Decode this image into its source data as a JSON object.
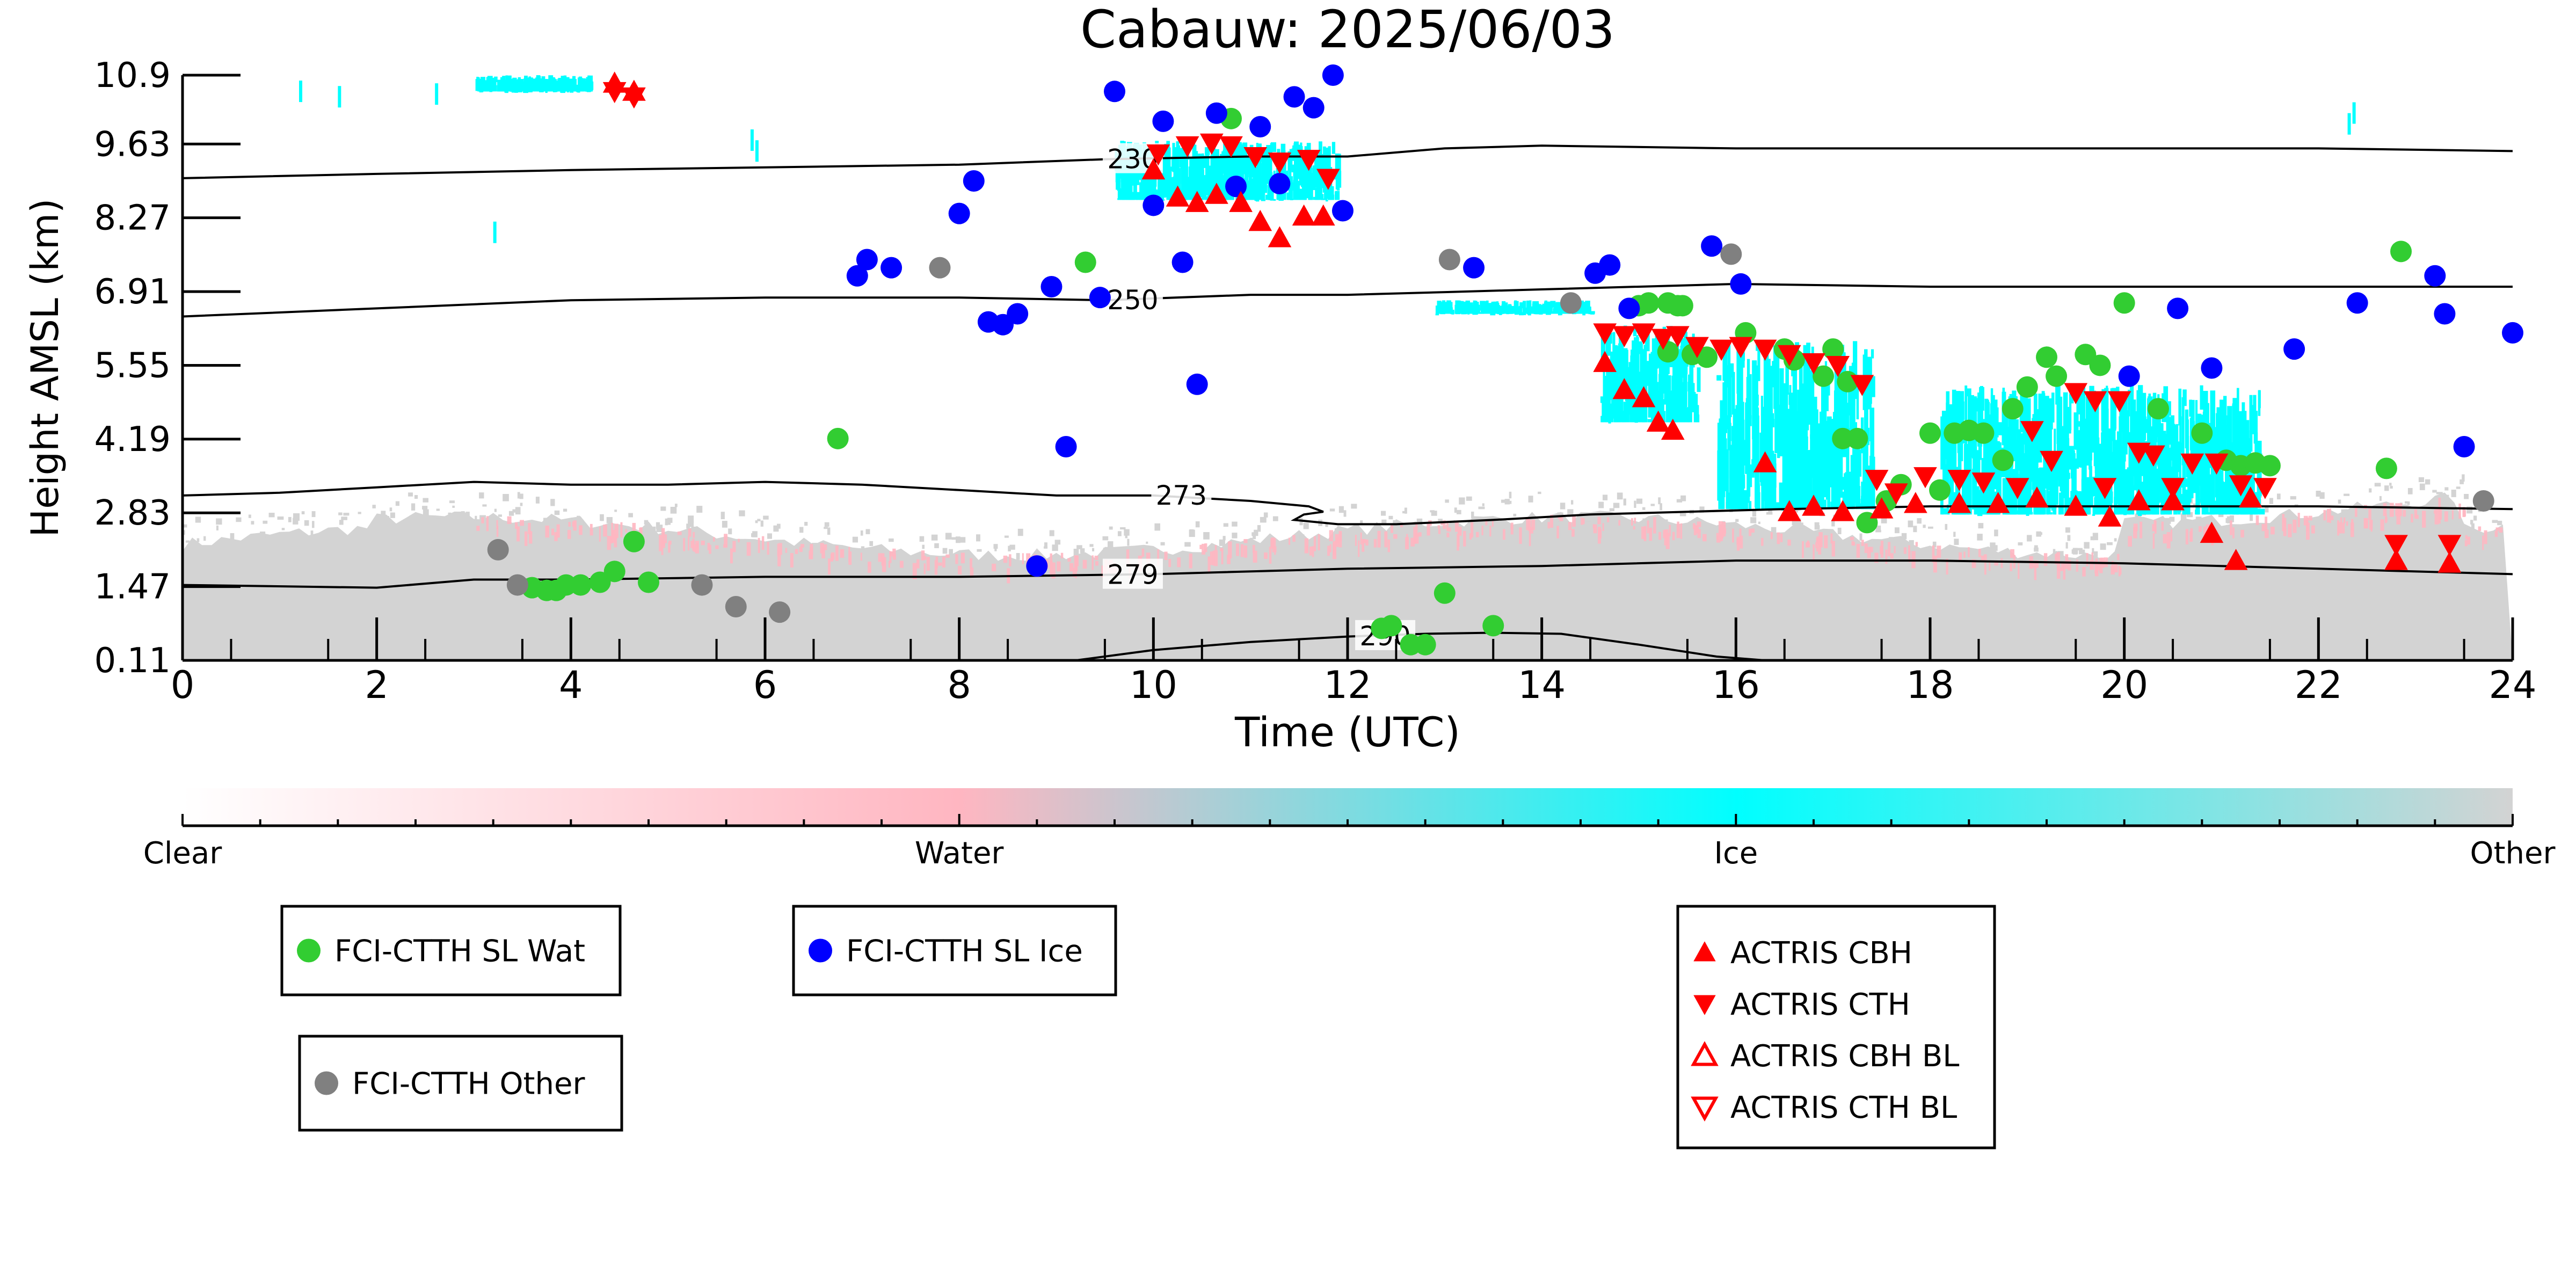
{
  "chart_data": {
    "type": "scatter",
    "title": "Cabauw: 2025/06/03",
    "xlabel": "Time (UTC)",
    "ylabel": "Height AMSL (km)",
    "xlim": [
      0,
      24
    ],
    "ylim": [
      0.11,
      10.9
    ],
    "xticks": [
      0,
      2,
      4,
      6,
      8,
      10,
      12,
      14,
      16,
      18,
      20,
      22,
      24
    ],
    "yticks": [
      "0.11",
      "1.47",
      "2.83",
      "4.19",
      "5.55",
      "6.91",
      "8.27",
      "9.63",
      "10.9"
    ],
    "grid": false,
    "colorbar": {
      "labels": [
        "Clear",
        "Water",
        "Ice",
        "Other"
      ],
      "stops": [
        {
          "pos": 0.0,
          "color": "#ffffff"
        },
        {
          "pos": 0.333,
          "color": "#ffb6c1"
        },
        {
          "pos": 0.667,
          "color": "#00ffff"
        },
        {
          "pos": 1.0,
          "color": "#d3d3d3"
        }
      ]
    },
    "contours": [
      {
        "label": "230",
        "label_x": 9.5,
        "points": [
          [
            0,
            9.0
          ],
          [
            2,
            9.08
          ],
          [
            4,
            9.15
          ],
          [
            6,
            9.2
          ],
          [
            8,
            9.25
          ],
          [
            9.5,
            9.35
          ],
          [
            11,
            9.4
          ],
          [
            12,
            9.4
          ],
          [
            13,
            9.55
          ],
          [
            14,
            9.6
          ],
          [
            16,
            9.55
          ],
          [
            18,
            9.55
          ],
          [
            20,
            9.55
          ],
          [
            22,
            9.55
          ],
          [
            24,
            9.5
          ]
        ]
      },
      {
        "label": "250",
        "label_x": 9.5,
        "points": [
          [
            0,
            6.45
          ],
          [
            2,
            6.6
          ],
          [
            4,
            6.75
          ],
          [
            6,
            6.8
          ],
          [
            8,
            6.8
          ],
          [
            9.5,
            6.75
          ],
          [
            11,
            6.85
          ],
          [
            12,
            6.85
          ],
          [
            13,
            6.9
          ],
          [
            14,
            6.95
          ],
          [
            16,
            7.05
          ],
          [
            18,
            7.0
          ],
          [
            20,
            7.0
          ],
          [
            22,
            7.0
          ],
          [
            24,
            7.0
          ]
        ]
      },
      {
        "label": "273",
        "label_x": 10.0,
        "points": [
          [
            0,
            3.15
          ],
          [
            1,
            3.2
          ],
          [
            2,
            3.3
          ],
          [
            3,
            3.4
          ],
          [
            4,
            3.35
          ],
          [
            5,
            3.35
          ],
          [
            6,
            3.4
          ],
          [
            7,
            3.35
          ],
          [
            8,
            3.25
          ],
          [
            9,
            3.15
          ],
          [
            10,
            3.15
          ],
          [
            11,
            3.05
          ],
          [
            11.6,
            2.95
          ],
          [
            11.75,
            2.85
          ],
          [
            11.55,
            2.8
          ],
          [
            11.45,
            2.7
          ],
          [
            11.9,
            2.62
          ],
          [
            12.5,
            2.62
          ],
          [
            13.5,
            2.7
          ],
          [
            14.5,
            2.8
          ],
          [
            15.5,
            2.85
          ],
          [
            16.5,
            2.9
          ],
          [
            18,
            2.95
          ],
          [
            20,
            2.95
          ],
          [
            22,
            2.95
          ],
          [
            24,
            2.9
          ]
        ]
      },
      {
        "label": "279",
        "label_x": 9.5,
        "points": [
          [
            0,
            1.5
          ],
          [
            2,
            1.45
          ],
          [
            3,
            1.6
          ],
          [
            4,
            1.6
          ],
          [
            6,
            1.65
          ],
          [
            8,
            1.65
          ],
          [
            10,
            1.7
          ],
          [
            12,
            1.8
          ],
          [
            14,
            1.85
          ],
          [
            16,
            1.95
          ],
          [
            18,
            1.95
          ],
          [
            20,
            1.9
          ],
          [
            22,
            1.8
          ],
          [
            24,
            1.7
          ]
        ]
      },
      {
        "label": "290",
        "label_x": 12.1,
        "points": [
          [
            9.2,
            0.11
          ],
          [
            10,
            0.3
          ],
          [
            11,
            0.45
          ],
          [
            12,
            0.55
          ],
          [
            12.8,
            0.6
          ],
          [
            13.5,
            0.62
          ],
          [
            14.2,
            0.6
          ],
          [
            15,
            0.4
          ],
          [
            15.8,
            0.18
          ],
          [
            16.3,
            0.11
          ]
        ]
      }
    ],
    "series": [
      {
        "name": "FCI-CTTH SL Wat",
        "marker": "circle",
        "color": "#32cd32",
        "points": [
          [
            3.6,
            1.45
          ],
          [
            3.75,
            1.4
          ],
          [
            3.85,
            1.4
          ],
          [
            3.95,
            1.5
          ],
          [
            4.1,
            1.5
          ],
          [
            4.3,
            1.55
          ],
          [
            4.45,
            1.75
          ],
          [
            4.65,
            2.3
          ],
          [
            4.8,
            1.55
          ],
          [
            6.75,
            4.2
          ],
          [
            9.3,
            7.45
          ],
          [
            10.8,
            10.1
          ],
          [
            15.0,
            6.65
          ],
          [
            15.1,
            6.7
          ],
          [
            15.3,
            6.7
          ],
          [
            15.4,
            6.65
          ],
          [
            15.45,
            6.65
          ],
          [
            15.3,
            5.8
          ],
          [
            15.55,
            5.75
          ],
          [
            15.7,
            5.7
          ],
          [
            16.1,
            6.15
          ],
          [
            16.5,
            5.85
          ],
          [
            16.6,
            5.65
          ],
          [
            16.9,
            5.35
          ],
          [
            17.0,
            5.85
          ],
          [
            17.15,
            5.25
          ],
          [
            17.1,
            4.2
          ],
          [
            17.25,
            4.2
          ],
          [
            17.35,
            2.65
          ],
          [
            17.55,
            3.05
          ],
          [
            17.7,
            3.35
          ],
          [
            18.0,
            4.3
          ],
          [
            18.1,
            3.25
          ],
          [
            18.25,
            4.3
          ],
          [
            18.4,
            4.35
          ],
          [
            18.55,
            4.3
          ],
          [
            18.75,
            3.8
          ],
          [
            18.85,
            4.75
          ],
          [
            19.0,
            5.15
          ],
          [
            19.2,
            5.7
          ],
          [
            19.3,
            5.35
          ],
          [
            19.6,
            5.75
          ],
          [
            19.75,
            5.55
          ],
          [
            20.0,
            6.7
          ],
          [
            20.35,
            4.75
          ],
          [
            20.8,
            4.3
          ],
          [
            21.05,
            3.8
          ],
          [
            21.2,
            3.7
          ],
          [
            21.35,
            3.75
          ],
          [
            21.5,
            3.7
          ],
          [
            22.7,
            3.65
          ],
          [
            22.85,
            7.65
          ],
          [
            12.35,
            0.7
          ],
          [
            12.45,
            0.75
          ],
          [
            12.65,
            0.4
          ],
          [
            12.8,
            0.4
          ],
          [
            13.0,
            1.35
          ],
          [
            13.5,
            0.75
          ]
        ]
      },
      {
        "name": "FCI-CTTH SL Ice",
        "marker": "circle",
        "color": "#0000ff",
        "points": [
          [
            6.95,
            7.2
          ],
          [
            7.05,
            7.5
          ],
          [
            7.3,
            7.35
          ],
          [
            8.0,
            8.35
          ],
          [
            8.15,
            8.95
          ],
          [
            8.3,
            6.35
          ],
          [
            8.45,
            6.3
          ],
          [
            8.6,
            6.5
          ],
          [
            8.95,
            7.0
          ],
          [
            9.1,
            4.05
          ],
          [
            9.45,
            6.8
          ],
          [
            9.6,
            10.6
          ],
          [
            10.0,
            8.5
          ],
          [
            10.1,
            10.05
          ],
          [
            10.3,
            7.45
          ],
          [
            10.45,
            5.2
          ],
          [
            10.65,
            10.2
          ],
          [
            10.85,
            8.85
          ],
          [
            11.1,
            9.95
          ],
          [
            11.3,
            8.9
          ],
          [
            11.45,
            10.5
          ],
          [
            11.65,
            10.3
          ],
          [
            11.85,
            10.9
          ],
          [
            11.95,
            8.4
          ],
          [
            8.8,
            1.85
          ],
          [
            13.3,
            7.35
          ],
          [
            14.55,
            7.25
          ],
          [
            14.7,
            7.4
          ],
          [
            14.9,
            6.6
          ],
          [
            15.75,
            7.75
          ],
          [
            16.05,
            7.05
          ],
          [
            20.05,
            5.35
          ],
          [
            20.55,
            6.6
          ],
          [
            20.9,
            5.5
          ],
          [
            21.75,
            5.85
          ],
          [
            22.4,
            6.7
          ],
          [
            23.2,
            7.2
          ],
          [
            23.3,
            6.5
          ],
          [
            23.5,
            4.05
          ],
          [
            24.0,
            6.15
          ]
        ]
      },
      {
        "name": "FCI-CTTH Other",
        "marker": "circle",
        "color": "#808080",
        "points": [
          [
            3.25,
            2.15
          ],
          [
            3.45,
            1.5
          ],
          [
            7.8,
            7.35
          ],
          [
            5.35,
            1.5
          ],
          [
            5.7,
            1.1
          ],
          [
            6.15,
            1.0
          ],
          [
            13.05,
            7.5
          ],
          [
            14.3,
            6.7
          ],
          [
            15.95,
            7.6
          ],
          [
            23.7,
            3.05
          ]
        ]
      },
      {
        "name": "ACTRIS CBH",
        "marker": "triangle-up",
        "color": "#ff0000",
        "points": [
          [
            4.45,
            10.75
          ],
          [
            4.65,
            10.6
          ],
          [
            10.0,
            9.15
          ],
          [
            10.25,
            8.65
          ],
          [
            10.45,
            8.55
          ],
          [
            10.65,
            8.7
          ],
          [
            10.9,
            8.55
          ],
          [
            11.1,
            8.2
          ],
          [
            11.3,
            7.9
          ],
          [
            11.55,
            8.3
          ],
          [
            11.75,
            8.3
          ],
          [
            14.65,
            5.6
          ],
          [
            14.85,
            5.1
          ],
          [
            15.05,
            4.95
          ],
          [
            15.2,
            4.5
          ],
          [
            15.35,
            4.35
          ],
          [
            16.3,
            3.75
          ],
          [
            16.55,
            2.85
          ],
          [
            16.8,
            2.95
          ],
          [
            17.1,
            2.85
          ],
          [
            17.5,
            2.9
          ],
          [
            17.85,
            3.0
          ],
          [
            18.3,
            3.0
          ],
          [
            18.7,
            3.0
          ],
          [
            19.1,
            3.1
          ],
          [
            19.5,
            2.95
          ],
          [
            19.85,
            2.75
          ],
          [
            20.15,
            3.05
          ],
          [
            20.5,
            3.05
          ],
          [
            20.9,
            2.45
          ],
          [
            21.3,
            3.1
          ],
          [
            21.15,
            1.95
          ],
          [
            22.8,
            1.95
          ],
          [
            23.35,
            1.9
          ]
        ]
      },
      {
        "name": "ACTRIS CTH",
        "marker": "triangle-down",
        "color": "#ff0000",
        "points": [
          [
            4.45,
            10.6
          ],
          [
            4.65,
            10.5
          ],
          [
            10.05,
            9.45
          ],
          [
            10.35,
            9.6
          ],
          [
            10.6,
            9.65
          ],
          [
            10.8,
            9.6
          ],
          [
            11.05,
            9.4
          ],
          [
            11.3,
            9.3
          ],
          [
            11.6,
            9.35
          ],
          [
            11.8,
            9.0
          ],
          [
            14.65,
            6.15
          ],
          [
            14.85,
            6.1
          ],
          [
            15.05,
            6.15
          ],
          [
            15.25,
            6.05
          ],
          [
            15.4,
            6.1
          ],
          [
            15.6,
            5.9
          ],
          [
            15.85,
            5.85
          ],
          [
            16.05,
            5.9
          ],
          [
            16.3,
            5.85
          ],
          [
            16.55,
            5.75
          ],
          [
            16.8,
            5.6
          ],
          [
            17.05,
            5.55
          ],
          [
            17.3,
            5.2
          ],
          [
            17.45,
            3.45
          ],
          [
            17.65,
            3.2
          ],
          [
            17.95,
            3.5
          ],
          [
            18.3,
            3.45
          ],
          [
            18.55,
            3.4
          ],
          [
            18.9,
            3.3
          ],
          [
            19.05,
            4.35
          ],
          [
            19.25,
            3.8
          ],
          [
            19.5,
            5.05
          ],
          [
            19.7,
            4.9
          ],
          [
            19.95,
            4.9
          ],
          [
            19.8,
            3.3
          ],
          [
            20.15,
            3.95
          ],
          [
            20.3,
            3.9
          ],
          [
            20.5,
            3.3
          ],
          [
            20.7,
            3.75
          ],
          [
            20.95,
            3.75
          ],
          [
            21.2,
            3.35
          ],
          [
            21.45,
            3.3
          ],
          [
            22.8,
            2.25
          ],
          [
            23.35,
            2.25
          ]
        ]
      }
    ],
    "legend": [
      {
        "label": "FCI-CTTH SL Wat",
        "marker": "circle",
        "color": "#32cd32"
      },
      {
        "label": "FCI-CTTH SL Ice",
        "marker": "circle",
        "color": "#0000ff"
      },
      {
        "label": "FCI-CTTH Other",
        "marker": "circle",
        "color": "#808080"
      },
      {
        "label": "ACTRIS CBH",
        "marker": "triangle-up",
        "color": "#ff0000"
      },
      {
        "label": "ACTRIS CTH",
        "marker": "triangle-down",
        "color": "#ff0000"
      },
      {
        "label": "ACTRIS CBH BL",
        "marker": "triangle-up-open",
        "color": "#ff0000"
      },
      {
        "label": "ACTRIS CTH BL",
        "marker": "triangle-down-open",
        "color": "#ff0000"
      }
    ]
  }
}
